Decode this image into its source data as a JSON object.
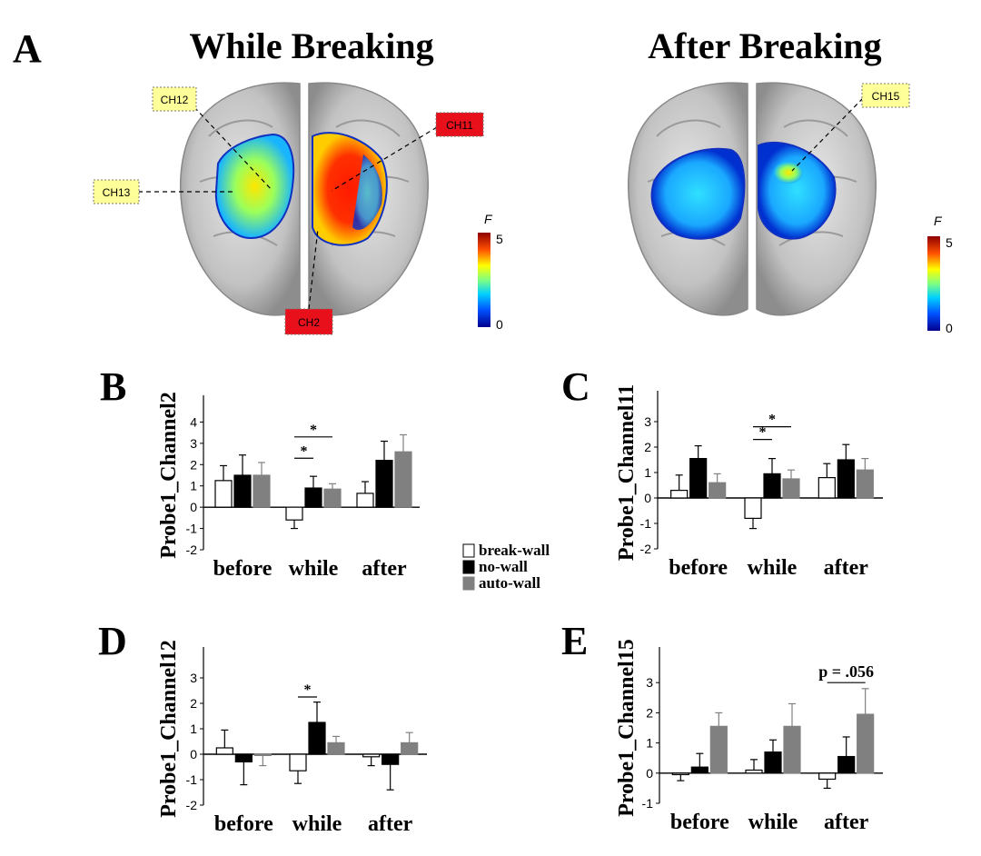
{
  "panel_letters": {
    "A": "A",
    "B": "B",
    "C": "C",
    "D": "D",
    "E": "E"
  },
  "brain_panels": [
    {
      "title": "While Breaking",
      "labels": [
        {
          "text": "CH12",
          "style": "yellow"
        },
        {
          "text": "CH13",
          "style": "yellow"
        },
        {
          "text": "CH11",
          "style": "red"
        },
        {
          "text": "CH2",
          "style": "red"
        }
      ],
      "colorbar": {
        "label": "F",
        "max": "5",
        "min": "0"
      }
    },
    {
      "title": "After Breaking",
      "labels": [
        {
          "text": "CH15",
          "style": "yellow"
        }
      ],
      "colorbar": {
        "label": "F",
        "max": "5",
        "min": "0"
      }
    }
  ],
  "legend": {
    "items": [
      {
        "label": "break-wall",
        "color": "#ffffff"
      },
      {
        "label": "no-wall",
        "color": "#000000"
      },
      {
        "label": "auto-wall",
        "color": "#808080"
      }
    ]
  },
  "colors": {
    "break_wall": "#ffffff",
    "no_wall": "#000000",
    "auto_wall": "#808080",
    "yellow_label": "#ffff99",
    "red_label": "#e8101a"
  },
  "chart_data": [
    {
      "type": "bar",
      "panel": "B",
      "ylabel": "Probe1_Channel2",
      "categories": [
        "before",
        "while",
        "after"
      ],
      "ylim": [
        -2,
        5
      ],
      "yticks": [
        "-2",
        "-1",
        "0",
        "1",
        "2",
        "3",
        "4"
      ],
      "series": [
        {
          "name": "break-wall",
          "values": [
            1.25,
            -0.6,
            0.65
          ],
          "errors": [
            0.7,
            0.4,
            0.55
          ]
        },
        {
          "name": "no-wall",
          "values": [
            1.5,
            0.9,
            2.2
          ],
          "errors": [
            0.95,
            0.55,
            0.9
          ]
        },
        {
          "name": "auto-wall",
          "values": [
            1.5,
            0.85,
            2.6
          ],
          "errors": [
            0.6,
            0.25,
            0.8
          ]
        }
      ],
      "annotations": [
        {
          "text": "*",
          "cat": 1,
          "from": 0,
          "to": 1,
          "y": 2.3
        },
        {
          "text": "*",
          "cat": 1,
          "from": 0,
          "to": 2,
          "y": 3.3
        }
      ]
    },
    {
      "type": "bar",
      "panel": "C",
      "ylabel": "Probe1_Channel11",
      "categories": [
        "before",
        "while",
        "after"
      ],
      "ylim": [
        -2,
        4
      ],
      "yticks": [
        "-2",
        "-1",
        "0",
        "1",
        "2",
        "3"
      ],
      "series": [
        {
          "name": "break-wall",
          "values": [
            0.3,
            -0.8,
            0.8
          ],
          "errors": [
            0.6,
            0.4,
            0.55
          ]
        },
        {
          "name": "no-wall",
          "values": [
            1.55,
            0.95,
            1.5
          ],
          "errors": [
            0.5,
            0.6,
            0.6
          ]
        },
        {
          "name": "auto-wall",
          "values": [
            0.6,
            0.75,
            1.1
          ],
          "errors": [
            0.35,
            0.35,
            0.45
          ]
        }
      ],
      "annotations": [
        {
          "text": "*",
          "cat": 1,
          "from": 0,
          "to": 1,
          "y": 2.3
        },
        {
          "text": "*",
          "cat": 1,
          "from": 0,
          "to": 2,
          "y": 2.8
        }
      ]
    },
    {
      "type": "bar",
      "panel": "D",
      "ylabel": "Probe1_Channel12",
      "categories": [
        "before",
        "while",
        "after"
      ],
      "ylim": [
        -2,
        4
      ],
      "yticks": [
        "-2",
        "-1",
        "0",
        "1",
        "2",
        "3"
      ],
      "series": [
        {
          "name": "break-wall",
          "values": [
            0.25,
            -0.65,
            -0.1
          ],
          "errors": [
            0.7,
            0.5,
            0.35
          ]
        },
        {
          "name": "no-wall",
          "values": [
            -0.3,
            1.25,
            -0.4
          ],
          "errors": [
            0.9,
            0.8,
            1.0
          ]
        },
        {
          "name": "auto-wall",
          "values": [
            -0.05,
            0.45,
            0.45
          ],
          "errors": [
            0.4,
            0.25,
            0.4
          ]
        }
      ],
      "annotations": [
        {
          "text": "*",
          "cat": 1,
          "from": 0,
          "to": 1,
          "y": 2.25
        }
      ]
    },
    {
      "type": "bar",
      "panel": "E",
      "ylabel": "Probe1_Channel15",
      "categories": [
        "before",
        "while",
        "after"
      ],
      "ylim": [
        -1,
        4
      ],
      "yticks": [
        "-1",
        "0",
        "1",
        "2",
        "3"
      ],
      "series": [
        {
          "name": "break-wall",
          "values": [
            -0.05,
            0.1,
            -0.2
          ],
          "errors": [
            0.2,
            0.35,
            0.3
          ]
        },
        {
          "name": "no-wall",
          "values": [
            0.2,
            0.7,
            0.55
          ],
          "errors": [
            0.45,
            0.4,
            0.65
          ]
        },
        {
          "name": "auto-wall",
          "values": [
            1.55,
            1.55,
            1.95
          ],
          "errors": [
            0.45,
            0.75,
            0.85
          ]
        }
      ],
      "annotations": [
        {
          "text": "p = .056",
          "cat": 2,
          "from": 0,
          "to": 2,
          "y": 3.0
        }
      ]
    }
  ]
}
